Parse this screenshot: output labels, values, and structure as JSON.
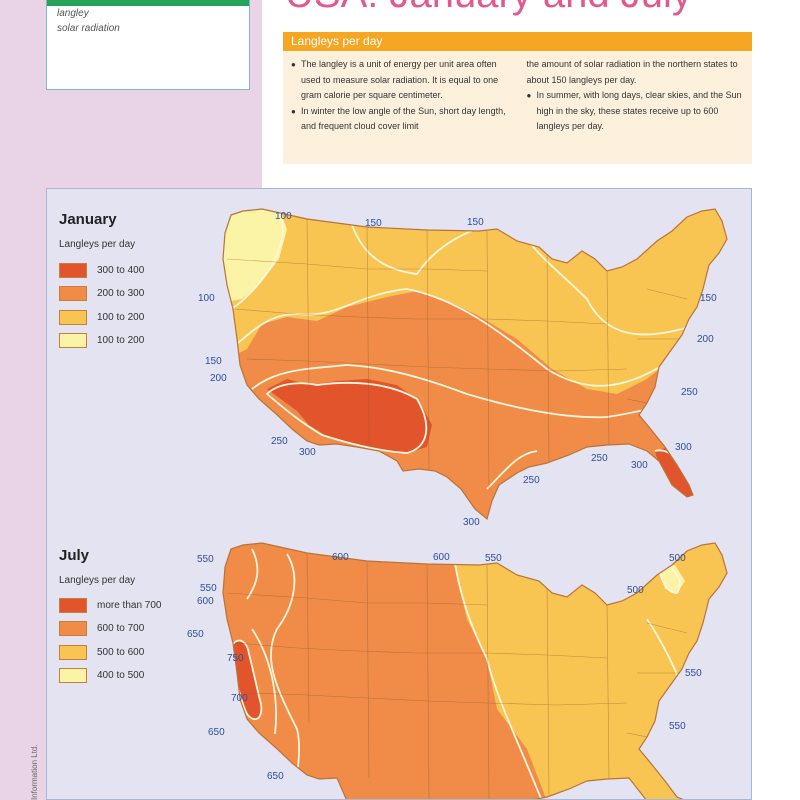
{
  "page_title": "USA: January and July",
  "keywords": [
    "langley",
    "solar radiation"
  ],
  "info": {
    "header": "Langleys per day",
    "bullets": [
      "The langley is a unit of energy per unit area often used to measure solar radiation. It is equal to one gram calorie per square centimeter.",
      "In winter the low angle of the Sun, short day length, and frequent cloud cover limit the amount of solar radiation in the northern states to about 150 langleys per day.",
      "In summer, with long days, clear skies, and the Sun high in the sky, these states receive up to 600 langleys per day."
    ],
    "col1_part1": "The langley is a unit of energy per unit area often used to measure solar radiation. It is equal to one gram calorie per square centimeter.",
    "col1_part2": "In winter the low angle of the Sun, short day length, and frequent cloud cover limit",
    "col2_part1": "the amount of solar radiation in the northern states to about 150 langleys per day.",
    "col2_part2": "In summer, with long days, clear skies, and the Sun high in the sky, these states receive up to 600 langleys per day."
  },
  "colors": {
    "level1": "#fbf3a6",
    "level2": "#f9c552",
    "level3": "#f08c48",
    "level4": "#e2542c",
    "contour": "#fff6dc",
    "label": "#2b4f9e"
  },
  "maps": {
    "january": {
      "title": "January",
      "legend_title": "Langleys per day",
      "legend": [
        {
          "label": "300 to 400",
          "color": "#e2542c"
        },
        {
          "label": "200 to 300",
          "color": "#f08c48"
        },
        {
          "label": "100 to 200",
          "color": "#f9c552"
        },
        {
          "label": "100 to 200",
          "color": "#fbf3a6"
        }
      ],
      "contour_labels": [
        "100",
        "150",
        "150",
        "100",
        "150",
        "200",
        "250",
        "300",
        "250",
        "300",
        "250",
        "300",
        "150",
        "200",
        "250",
        "300"
      ]
    },
    "july": {
      "title": "July",
      "legend_title": "Langleys per day",
      "legend": [
        {
          "label": "more than 700",
          "color": "#e2542c"
        },
        {
          "label": "600 to 700",
          "color": "#f08c48"
        },
        {
          "label": "500 to 600",
          "color": "#f9c552"
        },
        {
          "label": "400 to 500",
          "color": "#fbf3a6"
        }
      ],
      "contour_labels": [
        "550",
        "600",
        "600",
        "550",
        "550",
        "600",
        "650",
        "750",
        "700",
        "650",
        "650",
        "500",
        "500",
        "550",
        "550"
      ]
    }
  },
  "credit": "Information Ltd."
}
